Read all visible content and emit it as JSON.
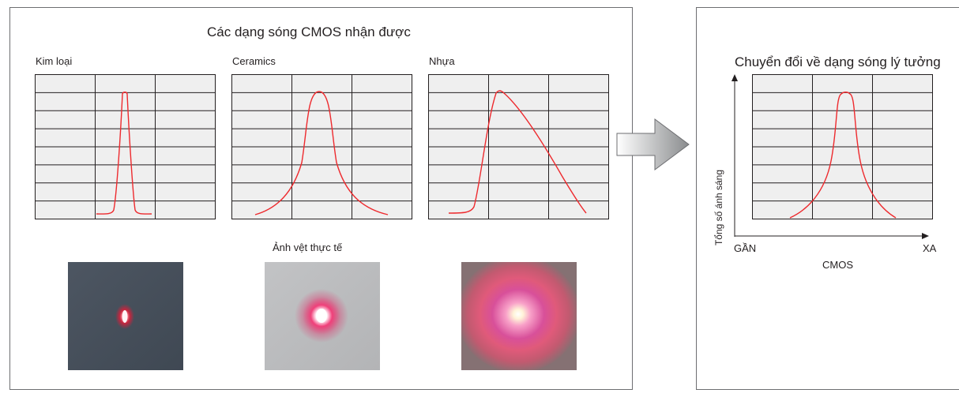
{
  "left": {
    "title": "Các dạng sóng CMOS nhận được",
    "graphs": [
      {
        "label": "Kim loại"
      },
      {
        "label": "Ceramics"
      },
      {
        "label": "Nhựa"
      }
    ],
    "photos_title": "Ảnh vệt thực tế"
  },
  "right": {
    "title": "Chuyển đổi về dạng sóng lý tưởng",
    "y_axis_label": "Tổng số ánh sáng",
    "x_near_label": "GẦN",
    "x_far_label": "XA",
    "x_axis_label": "CMOS"
  },
  "colors": {
    "curve": "#ee2a2e",
    "grid": "#231f20",
    "grid_fill": "#efefef",
    "border": "#6d6e71"
  },
  "icons": [
    "right-arrow-icon"
  ]
}
